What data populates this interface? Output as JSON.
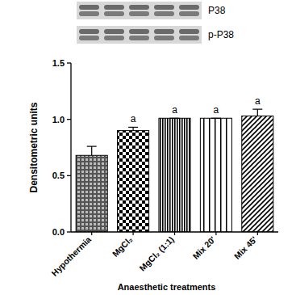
{
  "chart_data": {
    "type": "bar",
    "categories": [
      "Hypothermia",
      "MgCl₂",
      "MgCl₂ (1:1)",
      "Mix 20'",
      "Mix 45'"
    ],
    "values": [
      0.68,
      0.9,
      1.01,
      1.01,
      1.03
    ],
    "errors": [
      0.08,
      0.03,
      0.0,
      0.0,
      0.06
    ],
    "letters": [
      null,
      "a",
      "a",
      "a",
      "a"
    ],
    "blot_labels": [
      "P38",
      "p-P38"
    ],
    "y_label": "Densitometric units",
    "x_label": "Anaesthetic treatments",
    "ylim": [
      0,
      1.5
    ],
    "yticks": [
      {
        "value": 0,
        "label": "0.0"
      },
      {
        "value": 0.5,
        "label": "0.5"
      },
      {
        "value": 1.0,
        "label": "1.0"
      },
      {
        "value": 1.5,
        "label": "1.5"
      }
    ],
    "grid": false,
    "color": "#000000"
  }
}
